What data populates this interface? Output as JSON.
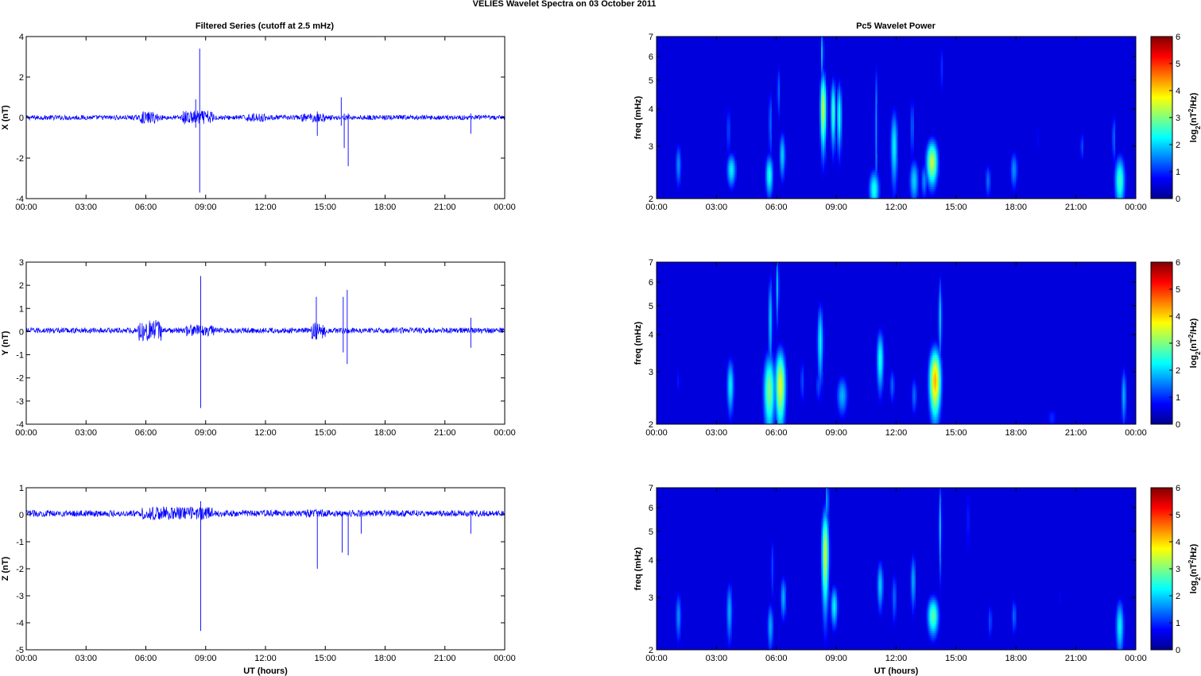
{
  "figure": {
    "title": "VELIES Wavelet Spectra on 03 October   2011",
    "left_title": "Filtered Series (cutoff at 2.5 mHz)",
    "right_title": "Pc5 Wavelet Power",
    "xlabel": "UT (hours)"
  },
  "colormap": "jet",
  "chart_data": [
    {
      "type": "line",
      "name": "X",
      "ylabel": "X (nT)",
      "x_range_hours": [
        0,
        24
      ],
      "xticks": [
        "00:00",
        "03:00",
        "06:00",
        "09:00",
        "12:00",
        "15:00",
        "18:00",
        "21:00",
        "00:00"
      ],
      "ylim": [
        -4,
        4
      ],
      "yticks": [
        -4,
        -2,
        0,
        2,
        4
      ],
      "line_color": "#0000ff",
      "baseline": 0.0,
      "noise_amplitude": 0.12,
      "active_intervals": [
        {
          "start": 5.7,
          "end": 6.6,
          "amplitude": 0.3
        },
        {
          "start": 7.8,
          "end": 9.4,
          "amplitude": 0.35
        },
        {
          "start": 11.0,
          "end": 12.0,
          "amplitude": 0.2
        },
        {
          "start": 13.8,
          "end": 15.0,
          "amplitude": 0.22
        }
      ],
      "spikes": [
        {
          "t": 8.7,
          "max": 3.4,
          "min": -3.7
        },
        {
          "t": 8.5,
          "max": 0.9,
          "min": -0.5
        },
        {
          "t": 14.6,
          "max": 0.3,
          "min": -0.9
        },
        {
          "t": 15.8,
          "max": 1.0,
          "min": -0.4
        },
        {
          "t": 15.95,
          "max": 0.2,
          "min": -1.5
        },
        {
          "t": 16.15,
          "max": 0.2,
          "min": -2.4
        },
        {
          "t": 22.3,
          "max": 0.2,
          "min": -0.8
        }
      ]
    },
    {
      "type": "line",
      "name": "Y",
      "ylabel": "Y (nT)",
      "x_range_hours": [
        0,
        24
      ],
      "xticks": [
        "00:00",
        "03:00",
        "06:00",
        "09:00",
        "12:00",
        "15:00",
        "18:00",
        "21:00",
        "00:00"
      ],
      "ylim": [
        -4,
        3
      ],
      "yticks": [
        -4,
        -3,
        -2,
        -1,
        0,
        1,
        2,
        3
      ],
      "line_color": "#0000ff",
      "baseline": 0.05,
      "noise_amplitude": 0.12,
      "active_intervals": [
        {
          "start": 5.6,
          "end": 6.8,
          "amplitude": 0.45
        },
        {
          "start": 8.0,
          "end": 9.4,
          "amplitude": 0.25
        },
        {
          "start": 14.3,
          "end": 15.0,
          "amplitude": 0.4
        }
      ],
      "spikes": [
        {
          "t": 8.75,
          "max": 2.4,
          "min": -3.3
        },
        {
          "t": 14.55,
          "max": 1.5,
          "min": -0.3
        },
        {
          "t": 15.9,
          "max": 1.5,
          "min": -0.9
        },
        {
          "t": 16.1,
          "max": 1.8,
          "min": -1.4
        },
        {
          "t": 22.3,
          "max": 0.6,
          "min": -0.7
        }
      ]
    },
    {
      "type": "line",
      "name": "Z",
      "ylabel": "Z (nT)",
      "x_range_hours": [
        0,
        24
      ],
      "xticks": [
        "00:00",
        "03:00",
        "06:00",
        "09:00",
        "12:00",
        "15:00",
        "18:00",
        "21:00",
        "00:00"
      ],
      "ylim": [
        -5,
        1
      ],
      "yticks": [
        -5,
        -4,
        -3,
        -2,
        -1,
        0,
        1
      ],
      "line_color": "#0000ff",
      "baseline": 0.05,
      "noise_amplitude": 0.12,
      "active_intervals": [
        {
          "start": 5.8,
          "end": 9.4,
          "amplitude": 0.25
        },
        {
          "start": 14.0,
          "end": 15.2,
          "amplitude": 0.15
        }
      ],
      "spikes": [
        {
          "t": 8.75,
          "max": 0.5,
          "min": -4.3
        },
        {
          "t": 14.6,
          "max": 0.1,
          "min": -2.0
        },
        {
          "t": 15.85,
          "max": 0.1,
          "min": -1.4
        },
        {
          "t": 16.15,
          "max": 0.1,
          "min": -1.5
        },
        {
          "t": 16.8,
          "max": 0.1,
          "min": -0.7
        },
        {
          "t": 22.3,
          "max": 0.1,
          "min": -0.7
        }
      ]
    },
    {
      "type": "heatmap",
      "name": "X wavelet power",
      "ylabel": "freq (mHz)",
      "xlabel": "",
      "x_range_hours": [
        0,
        24
      ],
      "xticks": [
        "00:00",
        "03:00",
        "06:00",
        "09:00",
        "12:00",
        "15:00",
        "18:00",
        "21:00",
        "00:00"
      ],
      "ylim": [
        2,
        7
      ],
      "yscale": "log",
      "yticks": [
        2,
        3,
        4,
        5,
        6,
        7
      ],
      "clim": [
        0,
        6
      ],
      "colorbar_label": "log2(nT²/Hz)",
      "colorbar_ticks": [
        0,
        1,
        2,
        3,
        4,
        5,
        6
      ],
      "blobs": [
        {
          "t": 1.1,
          "f": 2.6,
          "dt": 0.12,
          "df": 0.35,
          "v": 1.6
        },
        {
          "t": 3.75,
          "f": 2.5,
          "dt": 0.18,
          "df": 0.25,
          "v": 2.2
        },
        {
          "t": 3.6,
          "f": 3.4,
          "dt": 0.08,
          "df": 0.6,
          "v": 1.2
        },
        {
          "t": 5.65,
          "f": 2.4,
          "dt": 0.15,
          "df": 0.3,
          "v": 2.4
        },
        {
          "t": 5.7,
          "f": 3.6,
          "dt": 0.08,
          "df": 0.8,
          "v": 1.4
        },
        {
          "t": 6.3,
          "f": 2.8,
          "dt": 0.12,
          "df": 0.4,
          "v": 2.0
        },
        {
          "t": 6.1,
          "f": 4.6,
          "dt": 0.06,
          "df": 0.8,
          "v": 1.4
        },
        {
          "t": 8.35,
          "f": 4.0,
          "dt": 0.12,
          "df": 0.9,
          "v": 3.4
        },
        {
          "t": 8.3,
          "f": 6.2,
          "dt": 0.05,
          "df": 1.0,
          "v": 2.0
        },
        {
          "t": 8.85,
          "f": 3.9,
          "dt": 0.1,
          "df": 0.8,
          "v": 2.6
        },
        {
          "t": 9.15,
          "f": 3.8,
          "dt": 0.1,
          "df": 0.8,
          "v": 2.4
        },
        {
          "t": 10.9,
          "f": 2.15,
          "dt": 0.2,
          "df": 0.25,
          "v": 2.4
        },
        {
          "t": 11.0,
          "f": 3.5,
          "dt": 0.06,
          "df": 1.6,
          "v": 1.6
        },
        {
          "t": 11.9,
          "f": 3.0,
          "dt": 0.14,
          "df": 0.7,
          "v": 2.2
        },
        {
          "t": 12.9,
          "f": 2.3,
          "dt": 0.18,
          "df": 0.3,
          "v": 2.0
        },
        {
          "t": 12.8,
          "f": 3.5,
          "dt": 0.07,
          "df": 0.7,
          "v": 1.4
        },
        {
          "t": 13.8,
          "f": 2.65,
          "dt": 0.22,
          "df": 0.35,
          "v": 3.4
        },
        {
          "t": 13.4,
          "f": 2.3,
          "dt": 0.12,
          "df": 0.25,
          "v": 1.6
        },
        {
          "t": 14.25,
          "f": 5.5,
          "dt": 0.05,
          "df": 1.0,
          "v": 1.2
        },
        {
          "t": 16.6,
          "f": 2.3,
          "dt": 0.12,
          "df": 0.25,
          "v": 1.4
        },
        {
          "t": 17.9,
          "f": 2.5,
          "dt": 0.15,
          "df": 0.3,
          "v": 1.6
        },
        {
          "t": 19.1,
          "f": 3.2,
          "dt": 0.06,
          "df": 0.4,
          "v": 0.8
        },
        {
          "t": 21.3,
          "f": 3.0,
          "dt": 0.08,
          "df": 0.3,
          "v": 1.2
        },
        {
          "t": 23.2,
          "f": 2.3,
          "dt": 0.2,
          "df": 0.35,
          "v": 2.6
        },
        {
          "t": 22.9,
          "f": 3.2,
          "dt": 0.08,
          "df": 0.5,
          "v": 1.4
        }
      ]
    },
    {
      "type": "heatmap",
      "name": "Y wavelet power",
      "ylabel": "freq (mHz)",
      "xlabel": "",
      "x_range_hours": [
        0,
        24
      ],
      "xticks": [
        "00:00",
        "03:00",
        "06:00",
        "09:00",
        "12:00",
        "15:00",
        "18:00",
        "21:00",
        "00:00"
      ],
      "ylim": [
        2,
        7
      ],
      "yscale": "log",
      "yticks": [
        2,
        3,
        4,
        5,
        6,
        7
      ],
      "clim": [
        0,
        6
      ],
      "colorbar_label": "log2(nT²/Hz)",
      "colorbar_ticks": [
        0,
        1,
        2,
        3,
        4,
        5,
        6
      ],
      "blobs": [
        {
          "t": 1.1,
          "f": 2.8,
          "dt": 0.08,
          "df": 0.3,
          "v": 0.9
        },
        {
          "t": 3.7,
          "f": 2.7,
          "dt": 0.14,
          "df": 0.45,
          "v": 2.2
        },
        {
          "t": 5.65,
          "f": 2.6,
          "dt": 0.22,
          "df": 0.6,
          "v": 3.0
        },
        {
          "t": 5.7,
          "f": 4.5,
          "dt": 0.08,
          "df": 1.3,
          "v": 2.0
        },
        {
          "t": 6.2,
          "f": 2.7,
          "dt": 0.2,
          "df": 0.6,
          "v": 3.6
        },
        {
          "t": 6.05,
          "f": 5.8,
          "dt": 0.06,
          "df": 1.2,
          "v": 2.0
        },
        {
          "t": 7.3,
          "f": 2.8,
          "dt": 0.1,
          "df": 0.4,
          "v": 1.2
        },
        {
          "t": 8.2,
          "f": 3.8,
          "dt": 0.12,
          "df": 0.9,
          "v": 2.2
        },
        {
          "t": 8.1,
          "f": 2.7,
          "dt": 0.1,
          "df": 0.3,
          "v": 1.2
        },
        {
          "t": 9.3,
          "f": 2.5,
          "dt": 0.22,
          "df": 0.3,
          "v": 1.8
        },
        {
          "t": 11.2,
          "f": 3.3,
          "dt": 0.14,
          "df": 0.6,
          "v": 2.4
        },
        {
          "t": 11.8,
          "f": 2.7,
          "dt": 0.1,
          "df": 0.3,
          "v": 1.4
        },
        {
          "t": 12.9,
          "f": 2.5,
          "dt": 0.12,
          "df": 0.3,
          "v": 1.4
        },
        {
          "t": 13.95,
          "f": 2.8,
          "dt": 0.22,
          "df": 0.55,
          "v": 4.2
        },
        {
          "t": 14.2,
          "f": 4.6,
          "dt": 0.07,
          "df": 1.2,
          "v": 2.0
        },
        {
          "t": 15.6,
          "f": 3.3,
          "dt": 0.05,
          "df": 0.4,
          "v": 0.7
        },
        {
          "t": 19.8,
          "f": 2.1,
          "dt": 0.2,
          "df": 0.15,
          "v": 1.0
        },
        {
          "t": 23.4,
          "f": 2.5,
          "dt": 0.1,
          "df": 0.45,
          "v": 1.8
        }
      ]
    },
    {
      "type": "heatmap",
      "name": "Z wavelet power",
      "ylabel": "freq (mHz)",
      "xlabel": "UT (hours)",
      "x_range_hours": [
        0,
        24
      ],
      "xticks": [
        "00:00",
        "03:00",
        "06:00",
        "09:00",
        "12:00",
        "15:00",
        "18:00",
        "21:00",
        "00:00"
      ],
      "ylim": [
        2,
        7
      ],
      "yscale": "log",
      "yticks": [
        2,
        3,
        4,
        5,
        6,
        7
      ],
      "clim": [
        0,
        6
      ],
      "colorbar_label": "log2(nT²/Hz)",
      "colorbar_ticks": [
        0,
        1,
        2,
        3,
        4,
        5,
        6
      ],
      "blobs": [
        {
          "t": 1.1,
          "f": 2.6,
          "dt": 0.12,
          "df": 0.4,
          "v": 1.6
        },
        {
          "t": 3.65,
          "f": 2.7,
          "dt": 0.12,
          "df": 0.5,
          "v": 1.8
        },
        {
          "t": 5.7,
          "f": 2.4,
          "dt": 0.12,
          "df": 0.35,
          "v": 1.8
        },
        {
          "t": 5.8,
          "f": 3.8,
          "dt": 0.08,
          "df": 0.8,
          "v": 1.2
        },
        {
          "t": 6.35,
          "f": 3.0,
          "dt": 0.12,
          "df": 0.4,
          "v": 1.8
        },
        {
          "t": 8.45,
          "f": 4.2,
          "dt": 0.14,
          "df": 1.2,
          "v": 3.4
        },
        {
          "t": 8.55,
          "f": 6.3,
          "dt": 0.05,
          "df": 1.0,
          "v": 2.0
        },
        {
          "t": 8.9,
          "f": 2.8,
          "dt": 0.14,
          "df": 0.35,
          "v": 2.2
        },
        {
          "t": 11.2,
          "f": 3.3,
          "dt": 0.12,
          "df": 0.5,
          "v": 2.0
        },
        {
          "t": 11.9,
          "f": 3.0,
          "dt": 0.1,
          "df": 0.5,
          "v": 1.4
        },
        {
          "t": 12.85,
          "f": 3.4,
          "dt": 0.1,
          "df": 0.6,
          "v": 1.8
        },
        {
          "t": 13.85,
          "f": 2.6,
          "dt": 0.22,
          "df": 0.3,
          "v": 2.8
        },
        {
          "t": 14.2,
          "f": 5.2,
          "dt": 0.06,
          "df": 1.4,
          "v": 2.0
        },
        {
          "t": 15.6,
          "f": 5.5,
          "dt": 0.04,
          "df": 1.4,
          "v": 1.4
        },
        {
          "t": 16.7,
          "f": 2.5,
          "dt": 0.1,
          "df": 0.3,
          "v": 1.2
        },
        {
          "t": 17.9,
          "f": 2.6,
          "dt": 0.1,
          "df": 0.3,
          "v": 1.4
        },
        {
          "t": 20.2,
          "f": 3.0,
          "dt": 0.05,
          "df": 0.3,
          "v": 0.7
        },
        {
          "t": 23.2,
          "f": 2.4,
          "dt": 0.16,
          "df": 0.4,
          "v": 2.2
        }
      ]
    }
  ]
}
